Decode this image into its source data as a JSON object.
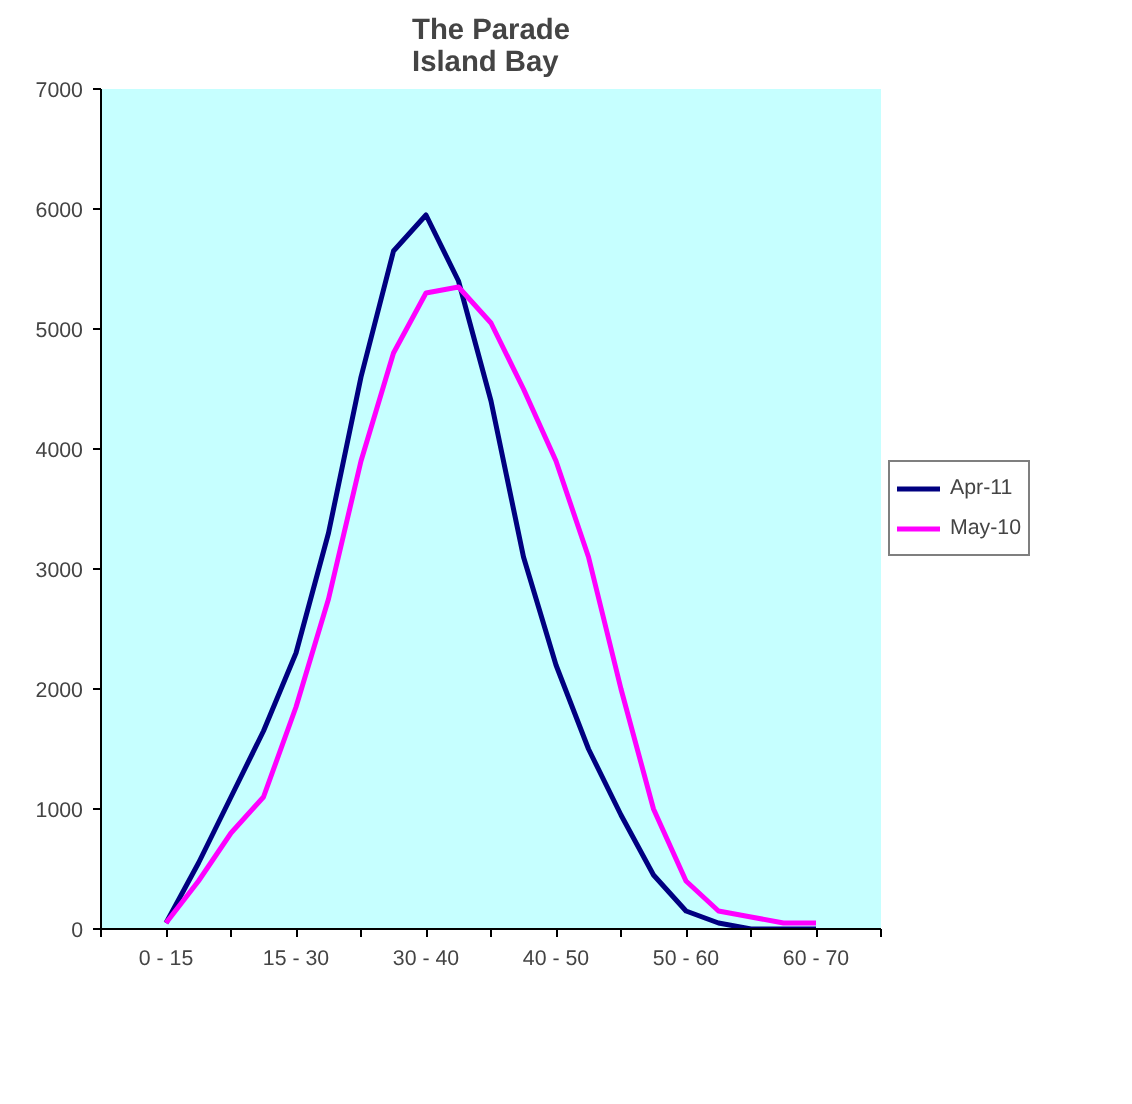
{
  "chart_data": {
    "type": "line",
    "title": "The Parade\nIsland Bay",
    "categories": [
      "0 - 15",
      null,
      null,
      null,
      "15 - 30",
      null,
      null,
      null,
      "30 - 40",
      null,
      null,
      null,
      "40 - 50",
      null,
      null,
      null,
      "50 - 60",
      null,
      null,
      null,
      "60 - 70"
    ],
    "ylim": [
      0,
      7000
    ],
    "yticks": [
      0,
      1000,
      2000,
      3000,
      4000,
      5000,
      6000,
      7000
    ],
    "legend": "right",
    "line_style": "solid",
    "series": [
      {
        "name": "Apr-11",
        "color": "#000080",
        "values": [
          50,
          550,
          1100,
          1650,
          2300,
          3300,
          4600,
          5650,
          5950,
          5400,
          4400,
          3100,
          2200,
          1500,
          950,
          450,
          150,
          50,
          0,
          0,
          0
        ]
      },
      {
        "name": "May-10",
        "color": "#ff00ff",
        "values": [
          50,
          400,
          800,
          1100,
          1850,
          2750,
          3900,
          4800,
          5300,
          5350,
          5050,
          4500,
          3900,
          3100,
          2000,
          1000,
          400,
          150,
          100,
          50,
          50
        ]
      }
    ]
  }
}
